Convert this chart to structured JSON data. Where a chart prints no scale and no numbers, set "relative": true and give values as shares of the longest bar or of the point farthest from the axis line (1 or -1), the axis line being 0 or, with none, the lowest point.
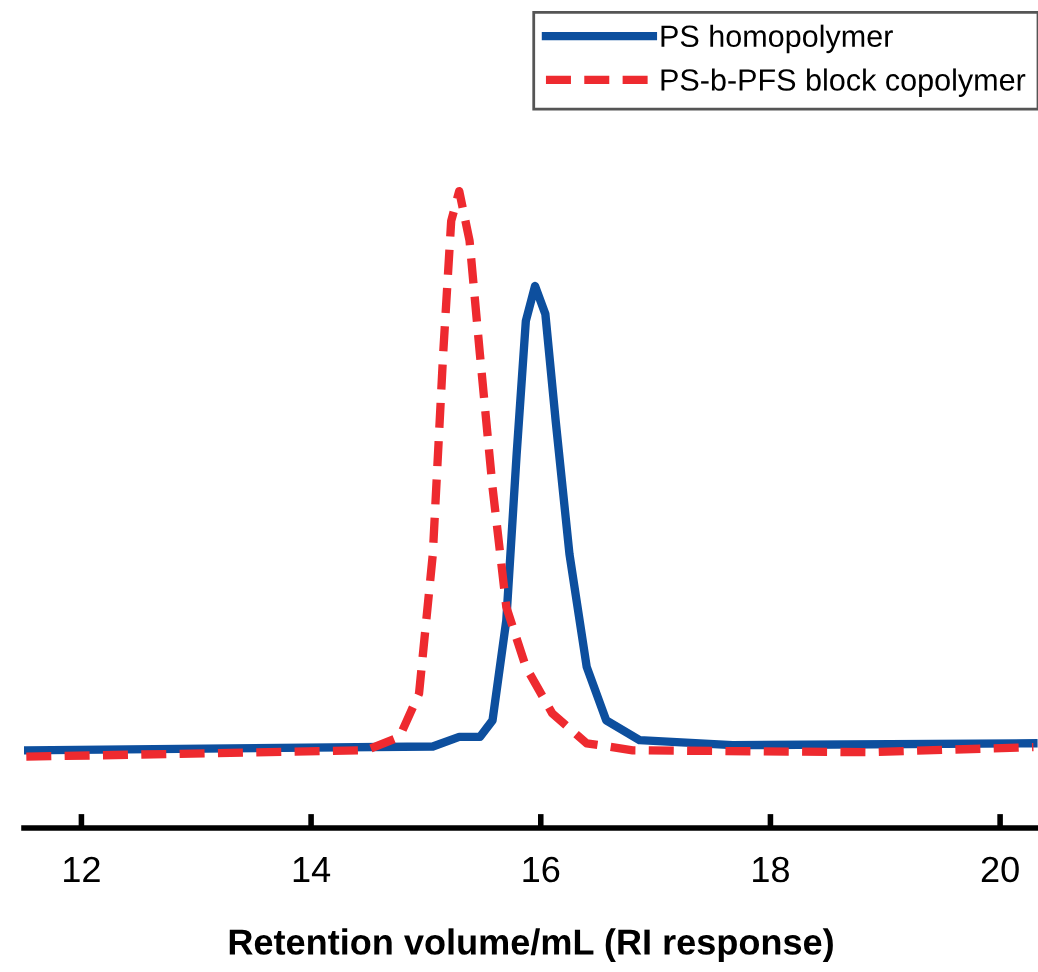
{
  "chart_data": {
    "type": "line",
    "relative": true,
    "xlabel": "Retention volume/mL (RI response)",
    "xlim": [
      11.5,
      20.33
    ],
    "xticks": [
      12,
      14,
      16,
      18,
      20
    ],
    "legend": "top right",
    "grid": false,
    "series": [
      {
        "name": "PS homopolymer",
        "color": "#0d4f9e",
        "line_style": "solid",
        "x": [
          11.52,
          15.06,
          15.29,
          15.47,
          15.58,
          15.7,
          15.79,
          15.87,
          15.95,
          16.04,
          16.13,
          16.25,
          16.4,
          16.57,
          16.86,
          17.67,
          20.29
        ],
        "values": [
          0.122,
          0.128,
          0.143,
          0.143,
          0.169,
          0.326,
          0.587,
          0.796,
          0.851,
          0.807,
          0.639,
          0.43,
          0.253,
          0.169,
          0.138,
          0.13,
          0.133
        ]
      },
      {
        "name": "PS-b-PFS block copolymer",
        "color": "#ee2a2f",
        "line_style": "dashed",
        "x": [
          11.52,
          14.48,
          14.77,
          14.94,
          15.06,
          15.15,
          15.22,
          15.29,
          15.38,
          15.47,
          15.58,
          15.7,
          15.87,
          16.1,
          16.4,
          16.8,
          18.84,
          20.29
        ],
        "values": [
          0.112,
          0.122,
          0.143,
          0.211,
          0.43,
          0.744,
          0.953,
          1.0,
          0.922,
          0.744,
          0.535,
          0.347,
          0.253,
          0.18,
          0.133,
          0.122,
          0.119,
          0.127
        ]
      }
    ]
  }
}
